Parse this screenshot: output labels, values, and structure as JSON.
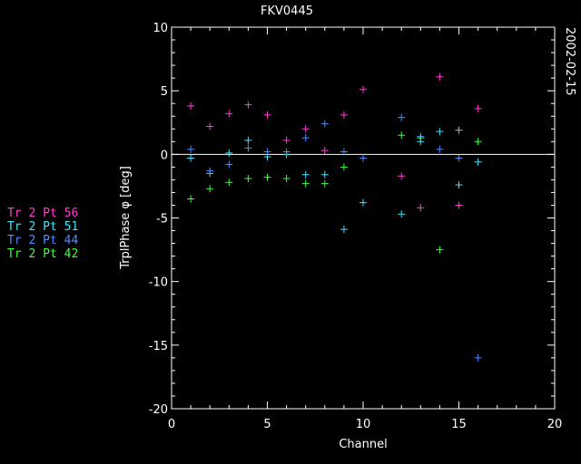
{
  "chart_data": {
    "type": "scatter",
    "title": "FKV0445",
    "date_label": "2002-02-15",
    "xlabel": "Channel",
    "ylabel": "TrplPhase φ [deg]",
    "xlim": [
      0,
      20
    ],
    "ylim": [
      -20,
      10
    ],
    "xticks": [
      0,
      5,
      10,
      15,
      20
    ],
    "yticks": [
      -20,
      -15,
      -10,
      -5,
      0,
      5,
      10
    ],
    "zero_line": true,
    "series": [
      {
        "name": "Tr 2 Pt 56",
        "color": "#ff3fd0",
        "points": [
          [
            1,
            3.8
          ],
          [
            2,
            2.2
          ],
          [
            3,
            3.2
          ],
          [
            4,
            3.9
          ],
          [
            5,
            3.1
          ],
          [
            6,
            1.1
          ],
          [
            7,
            2.0
          ],
          [
            8,
            0.3
          ],
          [
            9,
            3.1
          ],
          [
            10,
            5.1
          ],
          [
            12,
            -1.7
          ],
          [
            13,
            -4.2
          ],
          [
            14,
            6.1
          ],
          [
            15,
            -4.0
          ],
          [
            16,
            3.6
          ]
        ]
      },
      {
        "name": "Tr 2 Pt 51",
        "color": "#3fe6ff",
        "points": [
          [
            1,
            -0.3
          ],
          [
            2,
            -1.5
          ],
          [
            3,
            0.1
          ],
          [
            4,
            1.1
          ],
          [
            5,
            -0.2
          ],
          [
            6,
            0.0
          ],
          [
            7,
            -1.6
          ],
          [
            8,
            -1.6
          ],
          [
            9,
            -5.9
          ],
          [
            10,
            -3.8
          ],
          [
            12,
            -4.7
          ],
          [
            13,
            1.0
          ],
          [
            14,
            1.8
          ],
          [
            15,
            -2.4
          ],
          [
            16,
            -0.6
          ]
        ]
      },
      {
        "name": "Tr 2 Pt 44",
        "color": "#4f8cff",
        "points": [
          [
            1,
            0.4
          ],
          [
            2,
            -1.3
          ],
          [
            3,
            -0.8
          ],
          [
            4,
            0.5
          ],
          [
            5,
            0.2
          ],
          [
            6,
            0.2
          ],
          [
            7,
            1.3
          ],
          [
            8,
            2.4
          ],
          [
            9,
            0.2
          ],
          [
            10,
            -0.3
          ],
          [
            12,
            2.9
          ],
          [
            13,
            1.4
          ],
          [
            14,
            0.4
          ],
          [
            15,
            -0.3
          ],
          [
            16,
            -16.0
          ]
        ]
      },
      {
        "name": "Tr 2 Pt 42",
        "color": "#3fff3f",
        "points": [
          [
            1,
            -3.5
          ],
          [
            2,
            -2.7
          ],
          [
            3,
            -2.2
          ],
          [
            4,
            -1.9
          ],
          [
            5,
            -1.8
          ],
          [
            6,
            -1.9
          ],
          [
            7,
            -2.3
          ],
          [
            8,
            -2.3
          ],
          [
            9,
            -1.0
          ],
          [
            12,
            1.5
          ],
          [
            13,
            1.3
          ],
          [
            14,
            -7.5
          ],
          [
            15,
            1.9
          ],
          [
            16,
            1.0
          ]
        ]
      }
    ]
  }
}
